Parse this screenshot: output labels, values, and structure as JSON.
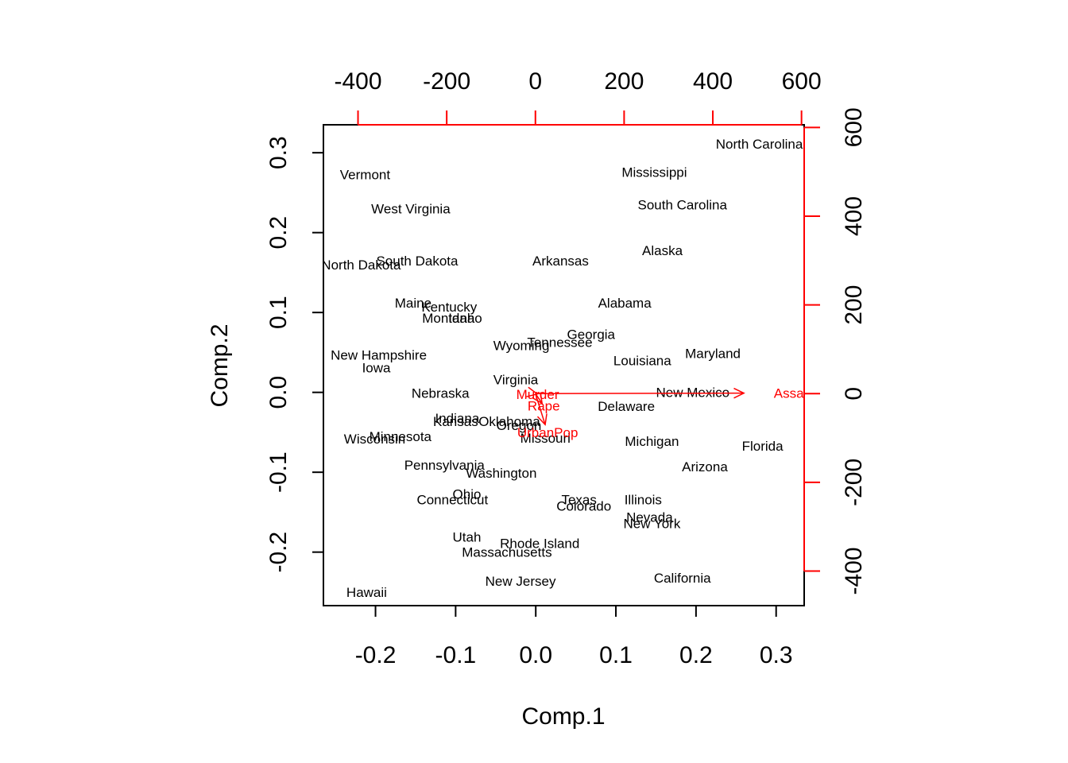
{
  "chart_data": {
    "type": "scatter",
    "subtype": "biplot",
    "xlabel": "Comp.1",
    "ylabel": "Comp.2",
    "xlim": [
      -0.265,
      0.335
    ],
    "ylim": [
      -0.267,
      0.335
    ],
    "x_ticks": [
      "-0.2",
      "-0.1",
      "0.0",
      "0.1",
      "0.2",
      "0.3"
    ],
    "x_tick_values": [
      -0.2,
      -0.1,
      0,
      0.1,
      0.2,
      0.3
    ],
    "y_ticks": [
      "-0.2",
      "-0.1",
      "0.0",
      "0.1",
      "0.2",
      "0.3"
    ],
    "y_tick_values": [
      -0.2,
      -0.1,
      0,
      0.1,
      0.2,
      0.3
    ],
    "top_ticks": [
      "-400",
      "-200",
      "0",
      "200",
      "400",
      "600"
    ],
    "top_tick_values": [
      -400,
      -200,
      0,
      200,
      400,
      600
    ],
    "right_ticks": [
      "-400",
      "-200",
      "0",
      "200",
      "400",
      "600"
    ],
    "right_tick_values": [
      -400,
      -200,
      0,
      200,
      400,
      600
    ],
    "loading_scale_range": [
      -478,
      606
    ],
    "loading_axis_color": "#ff0000",
    "points": [
      {
        "label": "Alabama",
        "x": 0.111,
        "y": 0.112
      },
      {
        "label": "Alaska",
        "x": 0.158,
        "y": 0.178
      },
      {
        "label": "Arizona",
        "x": 0.211,
        "y": -0.093
      },
      {
        "label": "Arkansas",
        "x": 0.031,
        "y": 0.165
      },
      {
        "label": "California",
        "x": 0.183,
        "y": -0.232
      },
      {
        "label": "Colorado",
        "x": 0.06,
        "y": -0.142
      },
      {
        "label": "Connecticut",
        "x": -0.104,
        "y": -0.134
      },
      {
        "label": "Delaware",
        "x": 0.113,
        "y": -0.017
      },
      {
        "label": "Florida",
        "x": 0.283,
        "y": -0.067
      },
      {
        "label": "Georgia",
        "x": 0.069,
        "y": 0.073
      },
      {
        "label": "Hawaii",
        "x": -0.211,
        "y": -0.25
      },
      {
        "label": "Idaho",
        "x": -0.088,
        "y": 0.093
      },
      {
        "label": "Illinois",
        "x": 0.134,
        "y": -0.134
      },
      {
        "label": "Indiana",
        "x": -0.098,
        "y": -0.032
      },
      {
        "label": "Iowa",
        "x": -0.199,
        "y": 0.031
      },
      {
        "label": "Kansas",
        "x": -0.1,
        "y": -0.036
      },
      {
        "label": "Kentucky",
        "x": -0.108,
        "y": 0.107
      },
      {
        "label": "Louisiana",
        "x": 0.133,
        "y": 0.04
      },
      {
        "label": "Maine",
        "x": -0.153,
        "y": 0.112
      },
      {
        "label": "Maryland",
        "x": 0.221,
        "y": 0.049
      },
      {
        "label": "Massachusetts",
        "x": -0.036,
        "y": -0.2
      },
      {
        "label": "Michigan",
        "x": 0.145,
        "y": -0.061
      },
      {
        "label": "Minnesota",
        "x": -0.169,
        "y": -0.055
      },
      {
        "label": "Mississippi",
        "x": 0.148,
        "y": 0.276
      },
      {
        "label": "Missouri",
        "x": 0.012,
        "y": -0.057
      },
      {
        "label": "Montana",
        "x": -0.109,
        "y": 0.093
      },
      {
        "label": "Nebraska",
        "x": -0.119,
        "y": -0.001
      },
      {
        "label": "Nevada",
        "x": 0.142,
        "y": -0.156
      },
      {
        "label": "New Hampshire",
        "x": -0.196,
        "y": 0.047
      },
      {
        "label": "New Jersey",
        "x": -0.019,
        "y": -0.236
      },
      {
        "label": "New Mexico",
        "x": 0.196,
        "y": 0
      },
      {
        "label": "New York",
        "x": 0.145,
        "y": -0.164
      },
      {
        "label": "North Carolina",
        "x": 0.279,
        "y": 0.311
      },
      {
        "label": "North Dakota",
        "x": -0.218,
        "y": 0.16
      },
      {
        "label": "Ohio",
        "x": -0.086,
        "y": -0.127
      },
      {
        "label": "Oklahoma",
        "x": -0.033,
        "y": -0.036
      },
      {
        "label": "Oregon",
        "x": -0.021,
        "y": -0.041
      },
      {
        "label": "Pennsylvania",
        "x": -0.114,
        "y": -0.091
      },
      {
        "label": "Rhode Island",
        "x": 0.005,
        "y": -0.189
      },
      {
        "label": "South Carolina",
        "x": 0.183,
        "y": 0.235
      },
      {
        "label": "South Dakota",
        "x": -0.148,
        "y": 0.165
      },
      {
        "label": "Tennessee",
        "x": 0.03,
        "y": 0.063
      },
      {
        "label": "Texas",
        "x": 0.054,
        "y": -0.134
      },
      {
        "label": "Utah",
        "x": -0.086,
        "y": -0.181
      },
      {
        "label": "Vermont",
        "x": -0.213,
        "y": 0.273
      },
      {
        "label": "Virginia",
        "x": -0.025,
        "y": 0.016
      },
      {
        "label": "Washington",
        "x": -0.043,
        "y": -0.101
      },
      {
        "label": "West Virginia",
        "x": -0.156,
        "y": 0.23
      },
      {
        "label": "Wisconsin",
        "x": -0.201,
        "y": -0.058
      },
      {
        "label": "Wyoming",
        "x": -0.018,
        "y": 0.059
      }
    ],
    "loadings": [
      {
        "label": "Murder",
        "x": 4.0,
        "y": -0.8
      },
      {
        "label": "Assault",
        "x": 470.0,
        "y": 1.0
      },
      {
        "label": "UrbanPop",
        "x": 22.0,
        "y": -70.0
      },
      {
        "label": "Rape",
        "x": 15.0,
        "y": -22.0
      }
    ]
  }
}
